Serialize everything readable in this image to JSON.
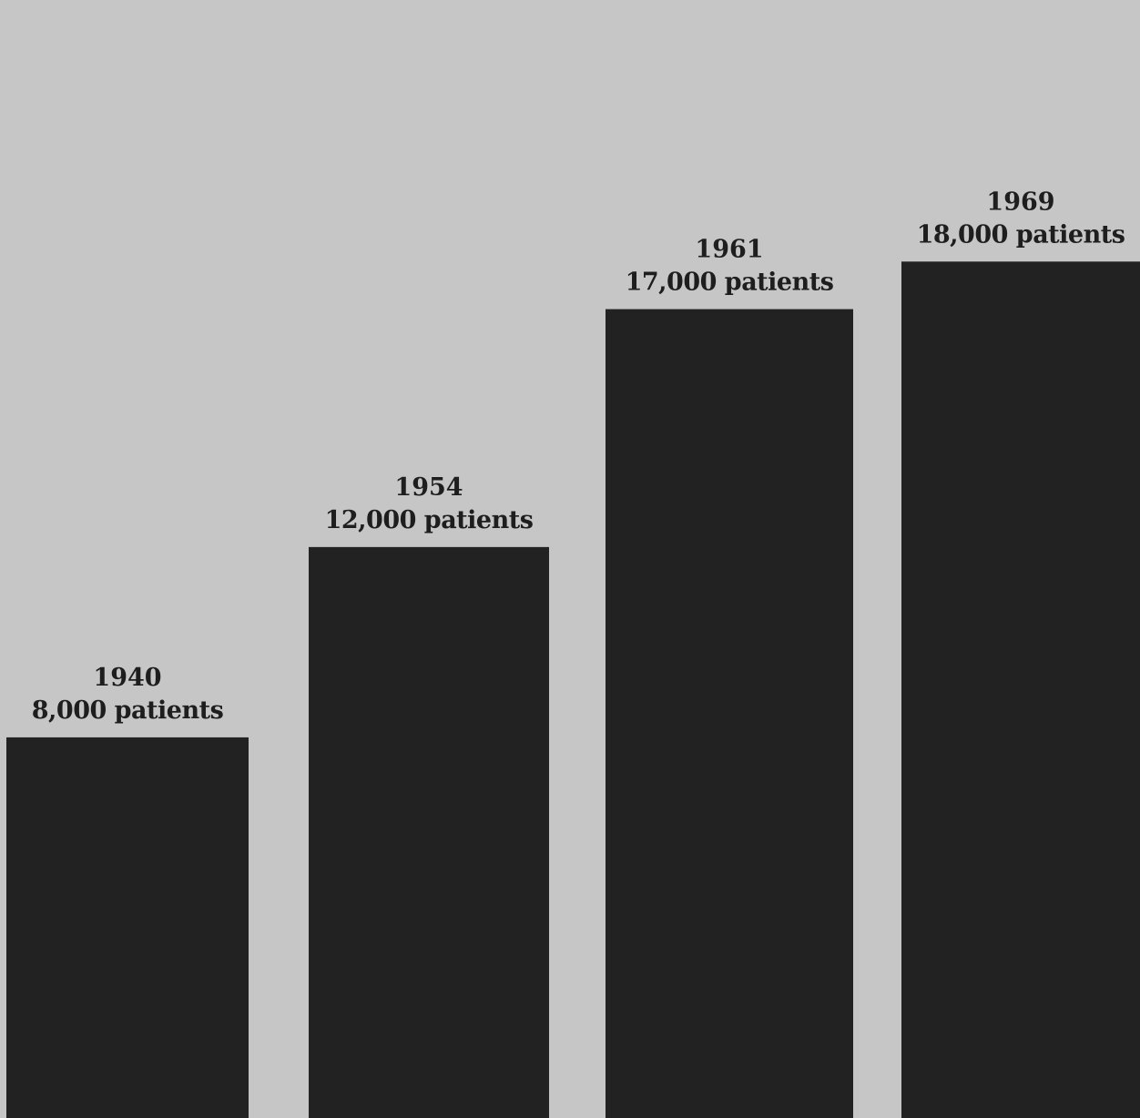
{
  "chart_data": {
    "type": "bar",
    "title": "",
    "xlabel": "",
    "ylabel": "",
    "categories": [
      "1940",
      "1954",
      "1961",
      "1969"
    ],
    "values": [
      8000,
      12000,
      17000,
      18000
    ],
    "data_labels": [
      "8,000 patients",
      "12,000 patients",
      "17,000 patients",
      "18,000 patients"
    ],
    "unit": "patients",
    "ylim": [
      0,
      23000
    ],
    "grid": false,
    "legend": "none"
  },
  "colors": {
    "background": "#c6c6c6",
    "bar": "#222222",
    "text": "#1e1e1e"
  }
}
